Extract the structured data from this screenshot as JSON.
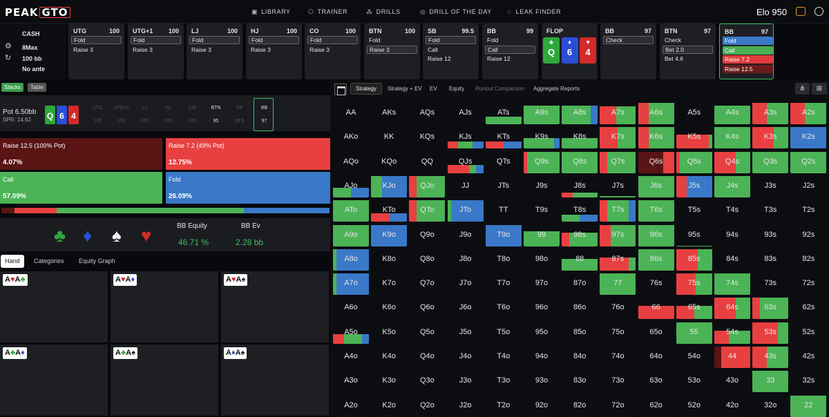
{
  "app": {
    "logo_peak": "PEAK",
    "logo_gto": "GTO"
  },
  "nav": [
    {
      "icon": "library-icon",
      "label": "LIBRARY"
    },
    {
      "icon": "trainer-icon",
      "label": "TRAINER"
    },
    {
      "icon": "drills-icon",
      "label": "DRILLS"
    },
    {
      "icon": "drill-of-day-icon",
      "label": "DRILL OF THE DAY"
    },
    {
      "icon": "leak-finder-icon",
      "label": "LEAK FINDER"
    }
  ],
  "elo": {
    "text": "Elo 950"
  },
  "game": {
    "title": "CASH",
    "table": "8Max",
    "stack": "100 bb",
    "ante": "No ante"
  },
  "seats": [
    {
      "name": "UTG",
      "stack": "100",
      "options": [
        {
          "label": "Fold",
          "sel": true
        },
        {
          "label": "Raise 3"
        }
      ]
    },
    {
      "name": "UTG+1",
      "stack": "100",
      "options": [
        {
          "label": "Fold",
          "sel": true
        },
        {
          "label": "Raise 3"
        }
      ]
    },
    {
      "name": "LJ",
      "stack": "100",
      "options": [
        {
          "label": "Fold",
          "sel": true
        },
        {
          "label": "Raise 3"
        }
      ]
    },
    {
      "name": "HJ",
      "stack": "100",
      "options": [
        {
          "label": "Fold",
          "sel": true
        },
        {
          "label": "Raise 3"
        }
      ]
    },
    {
      "name": "CO",
      "stack": "100",
      "options": [
        {
          "label": "Fold",
          "sel": true
        },
        {
          "label": "Raise 3"
        }
      ]
    },
    {
      "name": "BTN",
      "stack": "100",
      "options": [
        {
          "label": "Fold"
        },
        {
          "label": "Raise 3",
          "sel": true
        }
      ]
    },
    {
      "name": "SB",
      "stack": "99.5",
      "options": [
        {
          "label": "Fold",
          "sel": true
        },
        {
          "label": "Call"
        },
        {
          "label": "Raise 12"
        }
      ]
    },
    {
      "name": "BB",
      "stack": "99",
      "options": [
        {
          "label": "Fold"
        },
        {
          "label": "Call",
          "sel": true
        },
        {
          "label": "Raise 12"
        }
      ]
    }
  ],
  "flop": {
    "label": "FLOP",
    "cards": [
      {
        "rank": "Q",
        "suit": "♣",
        "color": "#2fa83b"
      },
      {
        "rank": "6",
        "suit": "♦",
        "color": "#2a4fd6"
      },
      {
        "rank": "4",
        "suit": "♥",
        "color": "#d42a2a"
      }
    ]
  },
  "postflop": [
    {
      "name": "BB",
      "stack": "97",
      "options": [
        {
          "label": "Check",
          "sel": true
        }
      ]
    },
    {
      "name": "BTN",
      "stack": "97",
      "options": [
        {
          "label": "Check"
        },
        {
          "label": "Bet 2.0",
          "sel": true
        },
        {
          "label": "Bet 4.6"
        }
      ]
    },
    {
      "name": "BB",
      "stack": "97",
      "active": true,
      "options": [
        {
          "label": "Fold",
          "color": "#3a78c8"
        },
        {
          "label": "Call",
          "color": "#4aaf55"
        },
        {
          "label": "Raise 7.2",
          "color": "#e23b3b"
        },
        {
          "label": "Raise 12.5",
          "color": "#6b1a1a"
        }
      ]
    }
  ],
  "left": {
    "view_buttons": [
      "Stacks",
      "Table"
    ],
    "pot": "Pot  6.50bb",
    "spr": "SPR: 14.62",
    "board": [
      {
        "rank": "Q",
        "color": "#2fa83b"
      },
      {
        "rank": "6",
        "color": "#2a4fd6"
      },
      {
        "rank": "4",
        "color": "#d42a2a"
      }
    ],
    "players": [
      {
        "name": "UTG",
        "stack": "100"
      },
      {
        "name": "UTG+1",
        "stack": "100"
      },
      {
        "name": "LJ",
        "stack": "100"
      },
      {
        "name": "HJ",
        "stack": "100"
      },
      {
        "name": "CO",
        "stack": "100"
      },
      {
        "name": "BTN",
        "stack": "95",
        "live": true
      },
      {
        "name": "SB",
        "stack": "99.5"
      },
      {
        "name": "BB",
        "stack": "97",
        "live": true,
        "cur": true
      }
    ],
    "actions": [
      {
        "label": "Raise 12.5 (100% Pot)",
        "pct": "4.07%",
        "freq": 4.07,
        "color": "#5a1414"
      },
      {
        "label": "Raise 7.2 (49% Pot)",
        "pct": "12.75%",
        "freq": 12.75,
        "color": "#e84040"
      },
      {
        "label": "Call",
        "pct": "57.09%",
        "freq": 57.09,
        "color": "#4cb356"
      },
      {
        "label": "Fold",
        "pct": "26.09%",
        "freq": 26.09,
        "color": "#3a78c8"
      }
    ],
    "suits": [
      {
        "glyph": "♣",
        "color": "#2fa83b"
      },
      {
        "glyph": "♦",
        "color": "#2a4fd6"
      },
      {
        "glyph": "♠",
        "color": "#f0f0f0"
      },
      {
        "glyph": "♥",
        "color": "#d42a2a"
      }
    ],
    "equity_label": "BB Equity",
    "ev_label": "BB Ev",
    "equity": "46.71 %",
    "ev": "2.28 bb",
    "tabs": [
      "Hand",
      "Categories",
      "Equity Graph"
    ],
    "combos": [
      [
        {
          "r": "A",
          "s": "♥",
          "c": "#d42a2a"
        },
        {
          "r": "A",
          "s": "♣",
          "c": "#2fa83b"
        }
      ],
      [
        {
          "r": "A",
          "s": "♥",
          "c": "#d42a2a"
        },
        {
          "r": "A",
          "s": "♦",
          "c": "#2a4fd6"
        }
      ],
      [
        {
          "r": "A",
          "s": "♥",
          "c": "#d42a2a"
        },
        {
          "r": "A",
          "s": "♠",
          "c": "#222"
        }
      ],
      [
        {
          "r": "A",
          "s": "♣",
          "c": "#2fa83b"
        },
        {
          "r": "A",
          "s": "♦",
          "c": "#2a4fd6"
        }
      ],
      [
        {
          "r": "A",
          "s": "♣",
          "c": "#2fa83b"
        },
        {
          "r": "A",
          "s": "♠",
          "c": "#222"
        }
      ],
      [
        {
          "r": "A",
          "s": "♦",
          "c": "#2a4fd6"
        },
        {
          "r": "A",
          "s": "♠",
          "c": "#222"
        }
      ]
    ]
  },
  "right": {
    "tabs": [
      {
        "label": "Strategy",
        "on": true
      },
      {
        "label": "Strategy + EV"
      },
      {
        "label": "EV"
      },
      {
        "label": "Equity"
      },
      {
        "label": "Runout Comparison",
        "dim": true
      },
      {
        "label": "Aggregate Reports"
      }
    ],
    "colors": {
      "fold": "#3a78c8",
      "call": "#4cb356",
      "raise": "#e84040",
      "raise_big": "#5a1414"
    },
    "hands": [
      [
        "AA",
        "AKs",
        "AQs",
        "AJs",
        "ATs",
        "A9s",
        "A8s",
        "A7s",
        "A6s",
        "A5s",
        "A4s",
        "A3s",
        "A2s"
      ],
      [
        "AKo",
        "KK",
        "KQs",
        "KJs",
        "KTs",
        "K9s",
        "K8s",
        "K7s",
        "K6s",
        "K5s",
        "K4s",
        "K3s",
        "K2s"
      ],
      [
        "AQo",
        "KQo",
        "QQ",
        "QJs",
        "QTs",
        "Q9s",
        "Q8s",
        "Q7s",
        "Q6s",
        "Q5s",
        "Q4s",
        "Q3s",
        "Q2s"
      ],
      [
        "AJo",
        "KJo",
        "QJo",
        "JJ",
        "JTs",
        "J9s",
        "J8s",
        "J7s",
        "J6s",
        "J5s",
        "J4s",
        "J3s",
        "J2s"
      ],
      [
        "ATo",
        "KTo",
        "QTo",
        "JTo",
        "TT",
        "T9s",
        "T8s",
        "T7s",
        "T6s",
        "T5s",
        "T4s",
        "T3s",
        "T2s"
      ],
      [
        "A9o",
        "K9o",
        "Q9o",
        "J9o",
        "T9o",
        "99",
        "98s",
        "97s",
        "96s",
        "95s",
        "94s",
        "93s",
        "92s"
      ],
      [
        "A8o",
        "K8o",
        "Q8o",
        "J8o",
        "T8o",
        "98o",
        "88",
        "87s",
        "86s",
        "85s",
        "84s",
        "83s",
        "82s"
      ],
      [
        "A7o",
        "K7o",
        "Q7o",
        "J7o",
        "T7o",
        "97o",
        "87o",
        "77",
        "76s",
        "75s",
        "74s",
        "73s",
        "72s"
      ],
      [
        "A6o",
        "K6o",
        "Q6o",
        "J6o",
        "T6o",
        "96o",
        "86o",
        "76o",
        "66",
        "65s",
        "64s",
        "63s",
        "62s"
      ],
      [
        "A5o",
        "K5o",
        "Q5o",
        "J5o",
        "T5o",
        "95o",
        "85o",
        "75o",
        "65o",
        "55",
        "54s",
        "53s",
        "52s"
      ],
      [
        "A4o",
        "K4o",
        "Q4o",
        "J4o",
        "T4o",
        "94o",
        "84o",
        "74o",
        "64o",
        "54o",
        "44",
        "43s",
        "42s"
      ],
      [
        "A3o",
        "K3o",
        "Q3o",
        "J3o",
        "T3o",
        "93o",
        "83o",
        "73o",
        "63o",
        "53o",
        "43o",
        "33",
        "32s"
      ],
      [
        "A2o",
        "K2o",
        "Q2o",
        "J2o",
        "T2o",
        "92o",
        "82o",
        "72o",
        "62o",
        "52o",
        "42o",
        "32o",
        "22"
      ]
    ],
    "strategies": {
      "ATs": {
        "fill": 0.33,
        "mix": {
          "call": 1
        }
      },
      "A9s": {
        "fill": 0.8,
        "mix": {
          "call": 1
        }
      },
      "A8s": {
        "fill": 0.8,
        "mix": {
          "call": 0.8,
          "fold": 0.2
        }
      },
      "A7s": {
        "fill": 0.75,
        "mix": {
          "raise": 0.45,
          "call": 0.55
        }
      },
      "A6s": {
        "fill": 0.9,
        "mix": {
          "raise": 0.3,
          "call": 0.7
        }
      },
      "A4s": {
        "fill": 0.8,
        "mix": {
          "call": 1
        }
      },
      "A3s": {
        "fill": 0.9,
        "mix": {
          "raise": 0.4,
          "call": 0.6
        }
      },
      "A2s": {
        "fill": 0.9,
        "mix": {
          "raise": 0.4,
          "call": 0.6
        }
      },
      "KJs": {
        "fill": 0.3,
        "mix": {
          "raise": 0.3,
          "call": 0.4,
          "fold": 0.3
        }
      },
      "KTs": {
        "fill": 0.3,
        "mix": {
          "raise": 0.5,
          "fold": 0.5
        }
      },
      "K9s": {
        "fill": 0.45,
        "mix": {
          "call": 0.85,
          "fold": 0.15
        }
      },
      "K8s": {
        "fill": 0.45,
        "mix": {
          "call": 1
        }
      },
      "K7s": {
        "fill": 0.9,
        "mix": {
          "raise": 0.5,
          "call": 0.5
        }
      },
      "K6s": {
        "fill": 0.9,
        "mix": {
          "raise": 0.3,
          "call": 0.7
        }
      },
      "K5s": {
        "fill": 0.6,
        "mix": {
          "raise": 0.9,
          "call": 0.1
        }
      },
      "K4s": {
        "fill": 0.9,
        "mix": {
          "call": 1
        }
      },
      "K3s": {
        "fill": 0.9,
        "mix": {
          "raise": 0.6,
          "call": 0.4
        }
      },
      "K2s": {
        "fill": 0.9,
        "mix": {
          "fold": 1
        }
      },
      "QJs": {
        "fill": 0.35,
        "mix": {
          "raise": 0.6,
          "call": 0.2,
          "fold": 0.2
        }
      },
      "Q9s": {
        "fill": 0.9,
        "mix": {
          "raise": 0.1,
          "call": 0.9
        }
      },
      "Q8s": {
        "fill": 0.9,
        "mix": {
          "call": 1
        }
      },
      "Q7s": {
        "fill": 0.9,
        "mix": {
          "raise": 0.2,
          "call": 0.8
        }
      },
      "Q6s": {
        "fill": 0.9,
        "mix": {
          "raise_big": 0.7,
          "raise": 0.3
        }
      },
      "Q5s": {
        "fill": 0.9,
        "mix": {
          "raise": 0.1,
          "call": 0.9
        }
      },
      "Q4s": {
        "fill": 0.9,
        "mix": {
          "raise": 0.6,
          "call": 0.4
        }
      },
      "Q3s": {
        "fill": 0.9,
        "mix": {
          "call": 1
        }
      },
      "Q2s": {
        "fill": 0.9,
        "mix": {
          "call": 1
        }
      },
      "J8s": {
        "fill": 0.2,
        "mix": {
          "raise": 0.3,
          "call": 0.7
        }
      },
      "J7s": {
        "fill": 0.05,
        "mix": {
          "call": 1
        }
      },
      "J6s": {
        "fill": 0.9,
        "mix": {
          "call": 1
        }
      },
      "J5s": {
        "fill": 0.9,
        "mix": {
          "raise": 0.3,
          "fold": 0.7
        }
      },
      "J4s": {
        "fill": 0.9,
        "mix": {
          "call": 1
        }
      },
      "AJo": {
        "fill": 0.4,
        "mix": {
          "call": 0.5,
          "fold": 0.5
        }
      },
      "KJo": {
        "fill": 0.9,
        "mix": {
          "call": 0.3,
          "fold": 0.7
        }
      },
      "QJo": {
        "fill": 0.9,
        "mix": {
          "raise": 0.2,
          "call": 0.8
        }
      },
      "ATo": {
        "fill": 0.9,
        "mix": {
          "call": 1
        }
      },
      "KTo": {
        "fill": 0.35,
        "mix": {
          "raise": 0.5,
          "fold": 0.5
        }
      },
      "QTo": {
        "fill": 0.9,
        "mix": {
          "raise": 0.2,
          "call": 0.8
        }
      },
      "JTo": {
        "fill": 0.9,
        "mix": {
          "call": 0.1,
          "fold": 0.9
        }
      },
      "T8s": {
        "fill": 0.3,
        "mix": {
          "call": 0.5,
          "fold": 0.5
        }
      },
      "T7s": {
        "fill": 0.9,
        "mix": {
          "raise": 0.2,
          "call": 0.6,
          "fold": 0.2
        }
      },
      "T6s": {
        "fill": 0.9,
        "mix": {
          "call": 1
        }
      },
      "A9o": {
        "fill": 0.9,
        "mix": {
          "call": 1
        }
      },
      "K9o": {
        "fill": 0.9,
        "mix": {
          "fold": 1
        }
      },
      "T9o": {
        "fill": 0.9,
        "mix": {
          "fold": 1
        }
      },
      "99": {
        "fill": 0.65,
        "mix": {
          "call": 1
        }
      },
      "98s": {
        "fill": 0.6,
        "mix": {
          "raise": 0.2,
          "call": 0.8
        }
      },
      "97s": {
        "fill": 0.9,
        "mix": {
          "raise": 0.3,
          "call": 0.7
        }
      },
      "96s": {
        "fill": 0.9,
        "mix": {
          "call": 1
        }
      },
      "95s": {
        "fill": 0.02,
        "mix": {
          "call": 1
        }
      },
      "A8o": {
        "fill": 0.9,
        "mix": {
          "call": 0.1,
          "fold": 0.9
        }
      },
      "88": {
        "fill": 0.5,
        "mix": {
          "call": 1
        }
      },
      "87s": {
        "fill": 0.55,
        "mix": {
          "raise": 0.8,
          "call": 0.2
        }
      },
      "86s": {
        "fill": 0.9,
        "mix": {
          "call": 1
        }
      },
      "85s": {
        "fill": 0.9,
        "mix": {
          "raise": 0.6,
          "call": 0.4
        }
      },
      "A7o": {
        "fill": 0.9,
        "mix": {
          "call": 0.1,
          "fold": 0.9
        }
      },
      "77": {
        "fill": 0.9,
        "mix": {
          "call": 1
        }
      },
      "75s": {
        "fill": 0.9,
        "mix": {
          "raise": 0.55,
          "call": 0.45
        }
      },
      "74s": {
        "fill": 0.9,
        "mix": {
          "call": 1
        }
      },
      "66": {
        "fill": 0.55,
        "mix": {
          "raise": 1
        }
      },
      "65s": {
        "fill": 0.55,
        "mix": {
          "raise": 0.5,
          "call": 0.5
        }
      },
      "64s": {
        "fill": 0.9,
        "mix": {
          "raise": 0.6,
          "call": 0.4
        }
      },
      "63s": {
        "fill": 0.9,
        "mix": {
          "raise": 0.2,
          "call": 0.8
        }
      },
      "A5o": {
        "fill": 0.4,
        "mix": {
          "raise": 0.3,
          "call": 0.5,
          "fold": 0.2
        }
      },
      "55": {
        "fill": 0.9,
        "mix": {
          "call": 1
        }
      },
      "54s": {
        "fill": 0.55,
        "mix": {
          "raise": 0.4,
          "call": 0.6
        }
      },
      "53s": {
        "fill": 0.9,
        "mix": {
          "raise": 0.7,
          "call": 0.3
        }
      },
      "44": {
        "fill": 0.9,
        "mix": {
          "raise_big": 0.2,
          "raise": 0.8
        }
      },
      "43s": {
        "fill": 0.9,
        "mix": {
          "raise": 0.4,
          "call": 0.6
        }
      },
      "33": {
        "fill": 0.9,
        "mix": {
          "call": 1
        }
      },
      "22": {
        "fill": 0.9,
        "mix": {
          "call": 1
        }
      }
    }
  }
}
